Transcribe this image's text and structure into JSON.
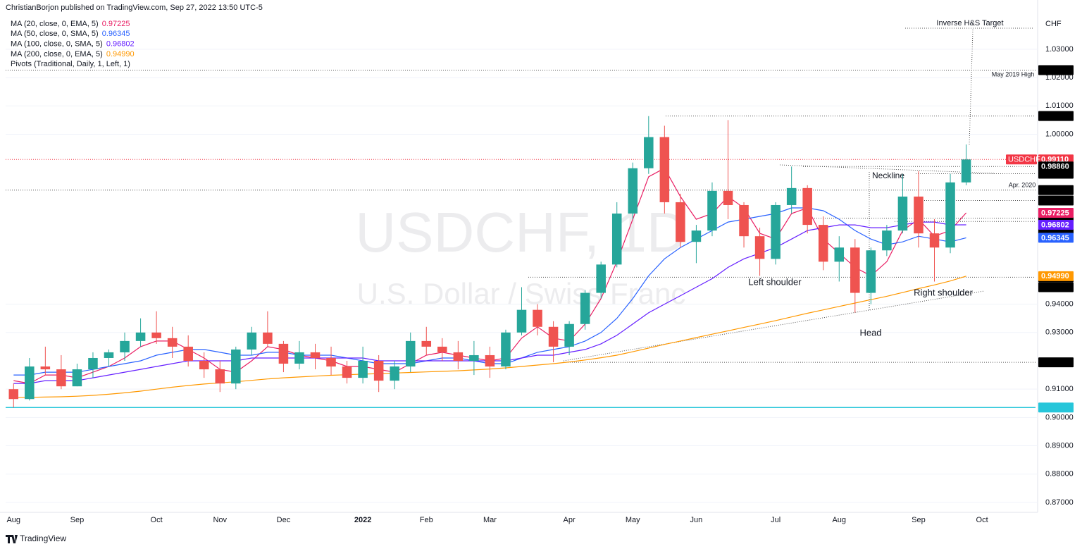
{
  "header": {
    "author_line": "ChristianBorjon published on TradingView.com, Sep 27, 2022 13:50 UTC-5",
    "brand": "TradingView"
  },
  "chart_data": {
    "type": "candlestick",
    "title": "USDCHF, 1D",
    "subtitle": "U.S. Dollar / Swiss Franc",
    "symbol": "USDCHF",
    "currency": "CHF",
    "categories": [
      "Aug",
      null,
      null,
      null,
      "Sep",
      null,
      null,
      null,
      null,
      "Oct",
      null,
      null,
      null,
      "Nov",
      null,
      null,
      null,
      "Dec",
      null,
      null,
      null,
      null,
      "2022",
      null,
      null,
      null,
      "Feb",
      null,
      null,
      null,
      "Mar",
      null,
      null,
      null,
      null,
      "Apr",
      null,
      null,
      null,
      "May",
      null,
      null,
      null,
      "Jun",
      null,
      null,
      null,
      null,
      "Jul",
      null,
      null,
      null,
      "Aug",
      null,
      null,
      null,
      null,
      "Sep",
      null,
      null,
      null,
      "Oct",
      null,
      null,
      null
    ],
    "ohlc": [
      [
        0.91,
        0.912,
        0.9035,
        0.9065
      ],
      [
        0.9065,
        0.921,
        0.906,
        0.918
      ],
      [
        0.918,
        0.925,
        0.915,
        0.917
      ],
      [
        0.917,
        0.922,
        0.91,
        0.911
      ],
      [
        0.911,
        0.919,
        0.911,
        0.917
      ],
      [
        0.917,
        0.923,
        0.914,
        0.921
      ],
      [
        0.921,
        0.924,
        0.918,
        0.923
      ],
      [
        0.923,
        0.93,
        0.92,
        0.927
      ],
      [
        0.927,
        0.935,
        0.925,
        0.93
      ],
      [
        0.93,
        0.9375,
        0.926,
        0.928
      ],
      [
        0.928,
        0.932,
        0.921,
        0.925
      ],
      [
        0.925,
        0.929,
        0.918,
        0.92
      ],
      [
        0.92,
        0.923,
        0.914,
        0.917
      ],
      [
        0.917,
        0.92,
        0.909,
        0.912
      ],
      [
        0.912,
        0.925,
        0.91,
        0.924
      ],
      [
        0.924,
        0.932,
        0.922,
        0.93
      ],
      [
        0.93,
        0.9375,
        0.925,
        0.926
      ],
      [
        0.926,
        0.927,
        0.916,
        0.919
      ],
      [
        0.919,
        0.927,
        0.917,
        0.923
      ],
      [
        0.923,
        0.926,
        0.917,
        0.921
      ],
      [
        0.921,
        0.925,
        0.915,
        0.918
      ],
      [
        0.918,
        0.92,
        0.912,
        0.914
      ],
      [
        0.914,
        0.925,
        0.912,
        0.92
      ],
      [
        0.92,
        0.922,
        0.909,
        0.913
      ],
      [
        0.913,
        0.92,
        0.91,
        0.918
      ],
      [
        0.918,
        0.93,
        0.916,
        0.927
      ],
      [
        0.927,
        0.932,
        0.922,
        0.925
      ],
      [
        0.925,
        0.928,
        0.92,
        0.923
      ],
      [
        0.923,
        0.927,
        0.917,
        0.92
      ],
      [
        0.92,
        0.927,
        0.915,
        0.922
      ],
      [
        0.922,
        0.925,
        0.914,
        0.918
      ],
      [
        0.918,
        0.931,
        0.917,
        0.93
      ],
      [
        0.93,
        0.946,
        0.929,
        0.938
      ],
      [
        0.938,
        0.94,
        0.929,
        0.932
      ],
      [
        0.932,
        0.934,
        0.9195,
        0.925
      ],
      [
        0.925,
        0.934,
        0.922,
        0.933
      ],
      [
        0.933,
        0.945,
        0.931,
        0.944
      ],
      [
        0.944,
        0.955,
        0.942,
        0.954
      ],
      [
        0.954,
        0.976,
        0.953,
        0.972
      ],
      [
        0.972,
        0.99,
        0.97,
        0.988
      ],
      [
        0.988,
        1.0064,
        0.986,
        0.999
      ],
      [
        0.999,
        1.003,
        0.972,
        0.976
      ],
      [
        0.976,
        0.979,
        0.96,
        0.962
      ],
      [
        0.962,
        0.968,
        0.9545,
        0.966
      ],
      [
        0.966,
        0.983,
        0.964,
        0.98
      ],
      [
        0.98,
        1.005,
        0.97,
        0.975
      ],
      [
        0.975,
        0.976,
        0.96,
        0.964
      ],
      [
        0.964,
        0.967,
        0.95,
        0.956
      ],
      [
        0.956,
        0.976,
        0.954,
        0.975
      ],
      [
        0.975,
        0.9886,
        0.972,
        0.981
      ],
      [
        0.981,
        0.982,
        0.965,
        0.968
      ],
      [
        0.968,
        0.971,
        0.952,
        0.955
      ],
      [
        0.955,
        0.964,
        0.948,
        0.96
      ],
      [
        0.96,
        0.963,
        0.937,
        0.944
      ],
      [
        0.944,
        0.96,
        0.94,
        0.959
      ],
      [
        0.959,
        0.968,
        0.957,
        0.966
      ],
      [
        0.966,
        0.986,
        0.965,
        0.978
      ],
      [
        0.978,
        0.987,
        0.96,
        0.965
      ],
      [
        0.965,
        0.97,
        0.948,
        0.96
      ],
      [
        0.96,
        0.986,
        0.958,
        0.983
      ],
      [
        0.983,
        0.9964,
        0.982,
        0.9911
      ],
      null,
      null,
      null,
      null
    ],
    "up_color": "#26a69a",
    "down_color": "#ef5350",
    "series": [
      {
        "name": "MA (20, close, 0, EMA, 5)",
        "color": "#e91e63",
        "last": 0.97225,
        "values": [
          0.913,
          0.912,
          0.915,
          0.915,
          0.914,
          0.916,
          0.918,
          0.921,
          0.925,
          0.927,
          0.927,
          0.924,
          0.921,
          0.917,
          0.916,
          0.92,
          0.925,
          0.924,
          0.922,
          0.921,
          0.92,
          0.918,
          0.918,
          0.917,
          0.916,
          0.919,
          0.922,
          0.923,
          0.922,
          0.921,
          0.92,
          0.921,
          0.928,
          0.932,
          0.928,
          0.927,
          0.933,
          0.942,
          0.955,
          0.97,
          0.985,
          0.988,
          0.978,
          0.97,
          0.972,
          0.978,
          0.974,
          0.965,
          0.963,
          0.972,
          0.974,
          0.963,
          0.958,
          0.953,
          0.95,
          0.955,
          0.966,
          0.97,
          0.964,
          0.966,
          0.97225,
          null,
          null,
          null,
          null
        ]
      },
      {
        "name": "MA (50, close, 0, SMA, 5)",
        "color": "#2962ff",
        "last": 0.96345,
        "values": [
          0.915,
          0.915,
          0.916,
          0.916,
          0.916,
          0.917,
          0.918,
          0.919,
          0.92,
          0.922,
          0.923,
          0.924,
          0.924,
          0.923,
          0.922,
          0.922,
          0.923,
          0.923,
          0.922,
          0.922,
          0.922,
          0.921,
          0.92,
          0.919,
          0.919,
          0.919,
          0.92,
          0.921,
          0.921,
          0.92,
          0.919,
          0.919,
          0.921,
          0.923,
          0.924,
          0.925,
          0.927,
          0.93,
          0.935,
          0.942,
          0.95,
          0.956,
          0.96,
          0.963,
          0.966,
          0.969,
          0.97,
          0.971,
          0.972,
          0.974,
          0.974,
          0.973,
          0.97,
          0.966,
          0.963,
          0.961,
          0.962,
          0.964,
          0.963,
          0.962,
          0.96345,
          null,
          null,
          null,
          null
        ]
      },
      {
        "name": "MA (100, close, 0, SMA, 5)",
        "color": "#651fff",
        "last": 0.96802,
        "values": [
          0.912,
          0.912,
          0.913,
          0.913,
          0.913,
          0.914,
          0.915,
          0.916,
          0.917,
          0.918,
          0.919,
          0.92,
          0.92,
          0.92,
          0.92,
          0.921,
          0.921,
          0.921,
          0.921,
          0.921,
          0.921,
          0.921,
          0.921,
          0.92,
          0.92,
          0.92,
          0.92,
          0.92,
          0.92,
          0.92,
          0.92,
          0.92,
          0.921,
          0.922,
          0.922,
          0.923,
          0.924,
          0.926,
          0.929,
          0.933,
          0.937,
          0.94,
          0.943,
          0.946,
          0.949,
          0.953,
          0.956,
          0.958,
          0.96,
          0.963,
          0.966,
          0.967,
          0.968,
          0.968,
          0.967,
          0.967,
          0.968,
          0.969,
          0.969,
          0.968,
          0.96802,
          null,
          null,
          null,
          null
        ]
      },
      {
        "name": "MA (200, close, 0, EMA, 5)",
        "color": "#ff9800",
        "last": {
          "value": 0.9499,
          "label": "0.94990"
        },
        "values": [
          0.907,
          0.9071,
          0.9072,
          0.9073,
          0.9075,
          0.9078,
          0.9082,
          0.9087,
          0.9093,
          0.91,
          0.9107,
          0.9113,
          0.9118,
          0.9122,
          0.9126,
          0.9131,
          0.9136,
          0.914,
          0.9143,
          0.9146,
          0.9149,
          0.9151,
          0.9153,
          0.9155,
          0.9157,
          0.9159,
          0.9161,
          0.9163,
          0.9165,
          0.9168,
          0.9171,
          0.9175,
          0.918,
          0.9185,
          0.919,
          0.9196,
          0.9203,
          0.9211,
          0.922,
          0.9232,
          0.9245,
          0.9258,
          0.927,
          0.9282,
          0.9294,
          0.9306,
          0.9318,
          0.933,
          0.9342,
          0.9355,
          0.9368,
          0.938,
          0.9392,
          0.9404,
          0.9416,
          0.9428,
          0.9441,
          0.9455,
          0.9468,
          0.9482,
          0.9499,
          null,
          null,
          null,
          null
        ]
      }
    ],
    "pivots_label": "Pivots (Traditional, Daily, 1, Left, 1)",
    "price_labels": [
      {
        "value": 1.02263,
        "bg": "#000000"
      },
      {
        "value": 1.00643,
        "bg": "#000000"
      },
      {
        "value": 0.9911,
        "label": "0.99110",
        "bg": "#f23645"
      },
      {
        "value": 0.9886,
        "label": "0.98860",
        "bg": "#000000"
      },
      {
        "value": 0.98606,
        "bg": "#000000"
      },
      {
        "value": 0.98027,
        "bg": "#000000"
      },
      {
        "value": 0.97662,
        "bg": "#000000"
      },
      {
        "value": 0.97039,
        "bg": "#000000"
      },
      {
        "value": 0.96922,
        "bg": "#000000"
      },
      {
        "value": 0.96515,
        "bg": "#000000"
      },
      {
        "value": 0.94951,
        "bg": "#000000"
      },
      {
        "value": 0.94601,
        "bg": "#000000"
      },
      {
        "value": 0.91947,
        "bg": "#000000"
      },
      {
        "value": 0.90352,
        "bg": "#26c6da"
      }
    ],
    "annotations": [
      "Inverse H&S Target",
      "May 2019 High",
      "Apr. 2020",
      "Neckline",
      "Left shoulder",
      "Head",
      "Right shoulder"
    ],
    "ylim": [
      0.8665,
      1.0474
    ],
    "yticks": [
      {
        "value": 0.87,
        "label": "0.87000"
      },
      {
        "value": 0.88,
        "label": "0.88000"
      },
      {
        "value": 0.89,
        "label": "0.89000"
      },
      {
        "value": 0.9,
        "label": "0.90000"
      },
      {
        "value": 0.91,
        "label": "0.91000"
      },
      {
        "value": 0.93,
        "label": "0.93000"
      },
      {
        "value": 0.94,
        "label": "0.94000"
      },
      {
        "value": 1,
        "label": "1.00000"
      },
      {
        "value": 1.01,
        "label": "1.01000"
      },
      {
        "value": 1.02,
        "label": "1.02000"
      },
      {
        "value": 1.03,
        "label": "1.03000"
      }
    ],
    "grid": true
  }
}
